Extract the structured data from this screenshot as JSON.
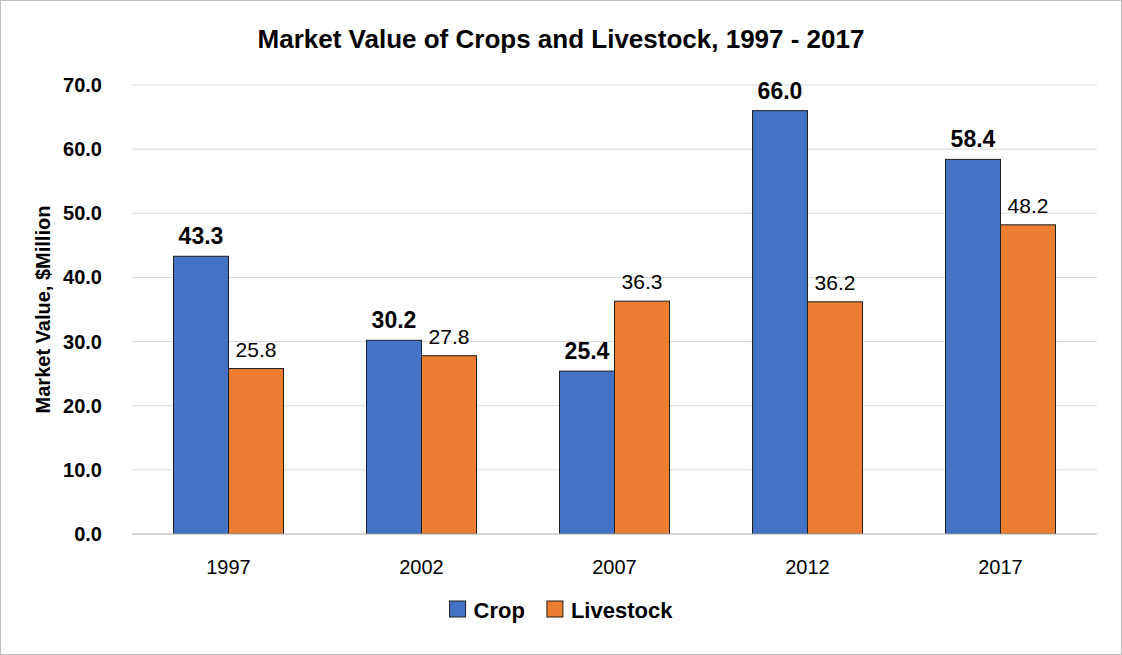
{
  "chart_data": {
    "type": "bar",
    "title": "Market Value of Crops and Livestock, 1997 - 2017",
    "y_label": "Market Value, $Million",
    "categories": [
      "1997",
      "2002",
      "2007",
      "2012",
      "2017"
    ],
    "series": [
      {
        "name": "Crop",
        "color": "#4472c4",
        "values": [
          43.3,
          30.2,
          25.4,
          66.0,
          58.4
        ],
        "value_labels": [
          "43.3",
          "30.2",
          "25.4",
          "66.0",
          "58.4"
        ]
      },
      {
        "name": "Livestock",
        "color": "#ed7d31",
        "values": [
          25.8,
          27.8,
          36.3,
          36.2,
          48.2
        ]
      }
    ],
    "ylim": [
      0,
      70
    ],
    "yticks": [
      {
        "value": 0,
        "label": "0.0"
      },
      {
        "value": 10,
        "label": "10.0"
      },
      {
        "value": 20,
        "label": "20.0"
      },
      {
        "value": 30,
        "label": "30.0"
      },
      {
        "value": 40,
        "label": "40.0"
      },
      {
        "value": 50,
        "label": "50.0"
      },
      {
        "value": 60,
        "label": "60.0"
      },
      {
        "value": 70,
        "label": "70.0"
      }
    ],
    "grid": true,
    "data_labels": true,
    "legend": "bottom"
  }
}
